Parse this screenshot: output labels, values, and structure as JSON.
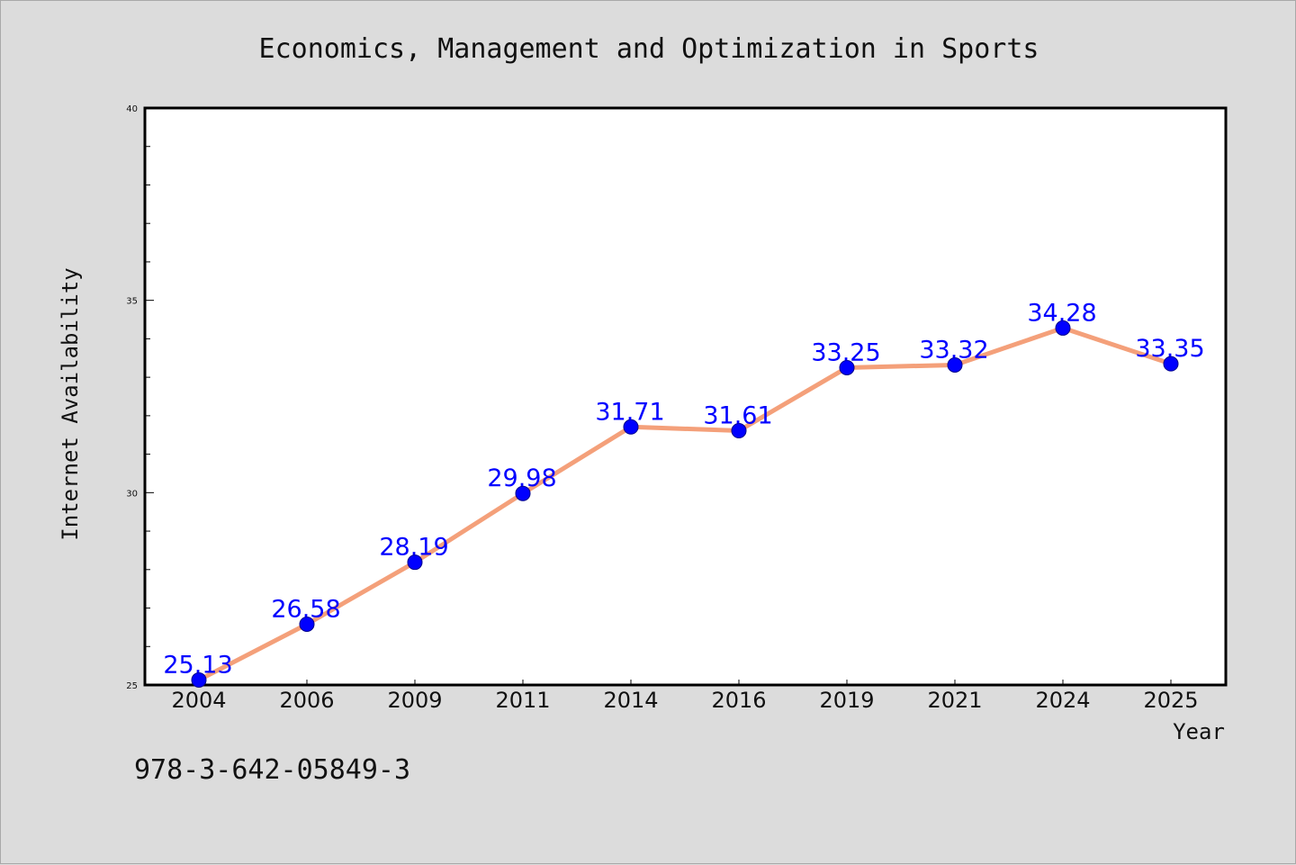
{
  "chart_data": {
    "type": "line",
    "title": "Economics, Management and Optimization in Sports",
    "xlabel": "Year",
    "ylabel": "Internet Availability",
    "categories": [
      "2004",
      "2006",
      "2009",
      "2011",
      "2014",
      "2016",
      "2019",
      "2021",
      "2024",
      "2025"
    ],
    "series": [
      {
        "values": [
          25.13,
          26.58,
          28.19,
          29.98,
          31.71,
          31.61,
          33.25,
          33.32,
          34.28,
          33.35
        ],
        "data_labels": [
          "25.13",
          "26.58",
          "28.19",
          "29.98",
          "31.71",
          "31.61",
          "33.25",
          "33.32",
          "34.28",
          "33.35"
        ]
      }
    ],
    "ylim": [
      25,
      40
    ],
    "yticks": [
      "25",
      "30",
      "35",
      "40"
    ],
    "y_minor_tick_step": 1,
    "grid": false,
    "colors": {
      "line": "#f4a07a",
      "marker": "#0000ff",
      "data_label": "#0000ff",
      "background": "#dcdcdc",
      "plot_bg": "#ffffff"
    }
  },
  "footnote": "978-3-642-05849-3"
}
